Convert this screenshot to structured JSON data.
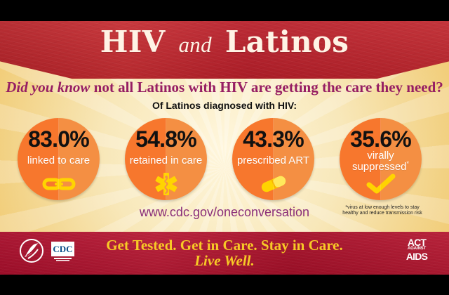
{
  "header": {
    "title_main": "HIV",
    "title_and": "and",
    "title_end": "Latinos"
  },
  "subtitle": {
    "lead": "Did you know",
    "text": " not all Latinos with HIV are getting the care they need?"
  },
  "intro": "Of Latinos diagnosed with HIV:",
  "stats": [
    {
      "value": "83.0%",
      "label": "linked to care",
      "icon": "chain-link-icon"
    },
    {
      "value": "54.8%",
      "label": "retained in care",
      "icon": "medical-star-icon"
    },
    {
      "value": "43.3%",
      "label": "prescribed ART",
      "icon": "pill-icon"
    },
    {
      "value": "35.6%",
      "label_line_1": "virally",
      "label_line_2": "suppressed",
      "label_mark": "*",
      "icon": "checkmark-icon"
    }
  ],
  "url": "www.cdc.gov/oneconversation",
  "footnote": "*virus at low enough levels to stay healthy and reduce transmission risk",
  "footer": {
    "cta_line_1": "Get Tested. Get in Care. Stay in Care.",
    "cta_line_2": "Live Well.",
    "cdc_logo_text": "CDC",
    "act_logo_top": "ACT",
    "act_logo_mid": "AGAINST",
    "act_logo_bottom": "AIDS"
  },
  "colors": {
    "accent_orange": "#f7772d",
    "deep_red": "#b42228",
    "purple_text": "#961e63",
    "gold_text": "#f7ca26"
  }
}
